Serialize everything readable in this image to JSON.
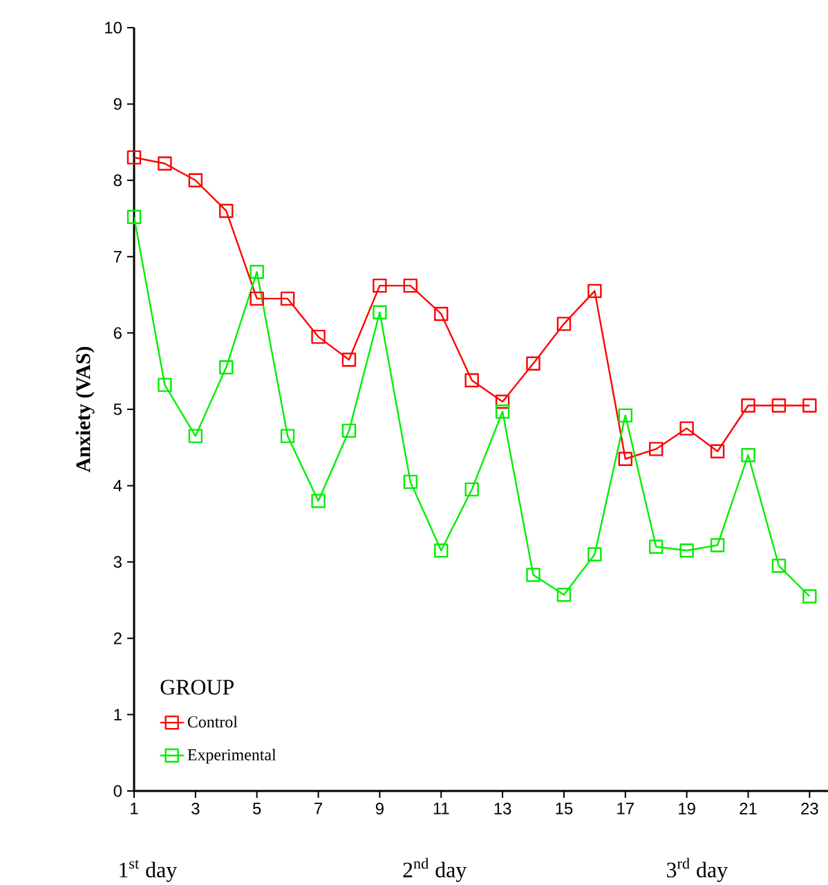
{
  "chart_data": {
    "type": "line",
    "ylabel": "Anxiety (VAS)",
    "legend_title": "GROUP",
    "legend": "bottom left",
    "marker": "square",
    "line_style": "solid",
    "grid": false,
    "x": [
      1,
      2,
      3,
      4,
      5,
      6,
      7,
      8,
      9,
      10,
      11,
      12,
      13,
      14,
      15,
      16,
      17,
      18,
      19,
      20,
      21,
      22,
      23
    ],
    "series": [
      {
        "name": "Control",
        "color": "#ff0000",
        "values": [
          8.3,
          8.22,
          8.0,
          7.6,
          6.45,
          6.45,
          5.95,
          5.65,
          6.62,
          6.62,
          6.25,
          5.38,
          5.1,
          5.6,
          6.12,
          6.55,
          4.35,
          4.48,
          4.75,
          4.45,
          5.05,
          5.05,
          5.05
        ]
      },
      {
        "name": "Experimental",
        "color": "#00ee00",
        "values": [
          7.52,
          5.32,
          4.65,
          5.55,
          6.8,
          4.65,
          3.8,
          4.72,
          6.27,
          4.05,
          3.15,
          3.95,
          4.97,
          2.83,
          2.57,
          3.1,
          4.92,
          3.2,
          3.15,
          3.22,
          4.4,
          2.95,
          2.55
        ]
      }
    ],
    "xlim": [
      1,
      23.6
    ],
    "ylim": [
      0,
      10
    ],
    "xticks": [
      1,
      3,
      5,
      7,
      9,
      11,
      13,
      15,
      17,
      19,
      21,
      23
    ],
    "yticks": [
      0,
      1,
      2,
      3,
      4,
      5,
      6,
      7,
      8,
      9,
      10
    ],
    "annotations": [
      "1$^{st}$ day",
      "2$^{nd}$ day",
      "3$^{rd}$ day"
    ]
  }
}
